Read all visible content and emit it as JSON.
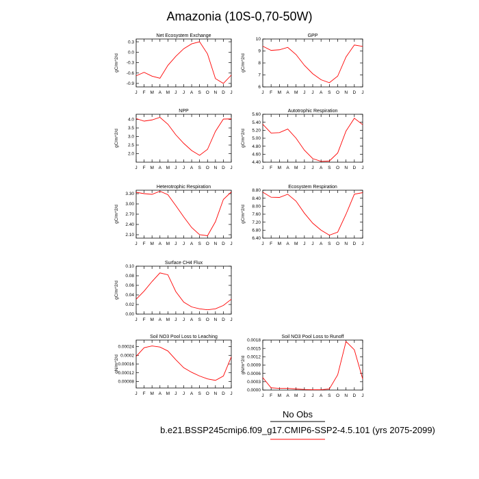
{
  "title": "Amazonia (10S-0,70-50W)",
  "legend": {
    "obs_label": "No Obs",
    "model_label": "b.e21.BSSP245cmip6.f09_g17.CMIP6-SSP2-4.5.101 (yrs 2075-2099)",
    "obs_color": "#000000",
    "model_color": "#ff0000"
  },
  "chart_data": [
    {
      "type": "line",
      "title": "Net Ecosystem Exchange",
      "ylabel": "gC/m^2/d",
      "categories": [
        "J",
        "F",
        "M",
        "A",
        "M",
        "J",
        "J",
        "A",
        "S",
        "O",
        "N",
        "D",
        "J"
      ],
      "ylim": [
        -1.0,
        0.38
      ],
      "yticks": [
        -0.9,
        -0.6,
        -0.3,
        0.0,
        0.3
      ],
      "ytick_labels": [
        "-0.9",
        "-0.6",
        "-0.3",
        "0.0",
        "0.3"
      ],
      "series": [
        {
          "color": "#ff0000",
          "values": [
            -0.68,
            -0.58,
            -0.69,
            -0.75,
            -0.38,
            -0.12,
            0.1,
            0.24,
            0.3,
            -0.05,
            -0.76,
            -0.9,
            -0.66
          ]
        }
      ]
    },
    {
      "type": "line",
      "title": "GPP",
      "ylabel": "gC/m^2/d",
      "categories": [
        "J",
        "F",
        "M",
        "A",
        "M",
        "J",
        "J",
        "A",
        "S",
        "O",
        "N",
        "D",
        "J"
      ],
      "ylim": [
        6,
        10
      ],
      "yticks": [
        6,
        7,
        8,
        9,
        10
      ],
      "ytick_labels": [
        "6",
        "7",
        "8",
        "9",
        "10"
      ],
      "series": [
        {
          "color": "#ff0000",
          "values": [
            9.4,
            9.05,
            9.1,
            9.3,
            8.7,
            7.8,
            7.1,
            6.6,
            6.35,
            6.9,
            8.5,
            9.5,
            9.38
          ]
        }
      ]
    },
    {
      "type": "line",
      "title": "NPP",
      "ylabel": "gC/m^2/d",
      "categories": [
        "J",
        "F",
        "M",
        "A",
        "M",
        "J",
        "J",
        "A",
        "S",
        "O",
        "N",
        "D",
        "J"
      ],
      "ylim": [
        1.5,
        4.3
      ],
      "yticks": [
        2.0,
        2.5,
        3.0,
        3.5,
        4.0
      ],
      "ytick_labels": [
        "2.0",
        "2.5",
        "3.0",
        "3.5",
        "4.0"
      ],
      "series": [
        {
          "color": "#ff0000",
          "values": [
            4.05,
            3.9,
            3.97,
            4.12,
            3.72,
            3.1,
            2.6,
            2.18,
            1.9,
            2.25,
            3.3,
            4.02,
            4.03
          ]
        }
      ]
    },
    {
      "type": "line",
      "title": "Autotrophic Respiration",
      "ylabel": "gC/m^2/d",
      "categories": [
        "J",
        "F",
        "M",
        "A",
        "M",
        "J",
        "J",
        "A",
        "S",
        "O",
        "N",
        "D",
        "J"
      ],
      "ylim": [
        4.4,
        5.6
      ],
      "yticks": [
        4.4,
        4.6,
        4.8,
        5.0,
        5.2,
        5.4,
        5.6
      ],
      "ytick_labels": [
        "4.40",
        "4.60",
        "4.80",
        "5.00",
        "5.20",
        "5.40",
        "5.60"
      ],
      "series": [
        {
          "color": "#ff0000",
          "values": [
            5.35,
            5.13,
            5.14,
            5.23,
            5.0,
            4.7,
            4.49,
            4.42,
            4.43,
            4.63,
            5.18,
            5.5,
            5.34
          ]
        }
      ]
    },
    {
      "type": "line",
      "title": "Heterotrophic Respiration",
      "ylabel": "gC/m^2/d",
      "categories": [
        "J",
        "F",
        "M",
        "A",
        "M",
        "J",
        "J",
        "A",
        "S",
        "O",
        "N",
        "D",
        "J"
      ],
      "ylim": [
        2.0,
        3.4
      ],
      "yticks": [
        2.1,
        2.4,
        2.7,
        3.0,
        3.3
      ],
      "ytick_labels": [
        "2.10",
        "2.40",
        "2.70",
        "3.00",
        "3.30"
      ],
      "series": [
        {
          "color": "#ff0000",
          "values": [
            3.34,
            3.3,
            3.28,
            3.37,
            3.27,
            2.95,
            2.62,
            2.31,
            2.1,
            2.07,
            2.48,
            3.13,
            3.35
          ]
        }
      ]
    },
    {
      "type": "line",
      "title": "Ecosystem Respiration",
      "ylabel": "gC/m^2/d",
      "categories": [
        "J",
        "F",
        "M",
        "A",
        "M",
        "J",
        "J",
        "A",
        "S",
        "O",
        "N",
        "D",
        "J"
      ],
      "ylim": [
        6.4,
        8.8
      ],
      "yticks": [
        6.4,
        6.8,
        7.2,
        7.6,
        8.0,
        8.4,
        8.8
      ],
      "ytick_labels": [
        "6.40",
        "6.80",
        "7.20",
        "7.60",
        "8.00",
        "8.40",
        "8.80"
      ],
      "series": [
        {
          "color": "#ff0000",
          "values": [
            8.7,
            8.45,
            8.44,
            8.6,
            8.25,
            7.65,
            7.15,
            6.8,
            6.55,
            6.7,
            7.6,
            8.6,
            8.68
          ]
        }
      ]
    },
    {
      "type": "line",
      "title": "Surface CH4 Flux",
      "ylabel": "gC/m^2/d",
      "categories": [
        "J",
        "F",
        "M",
        "A",
        "M",
        "J",
        "J",
        "A",
        "S",
        "O",
        "N",
        "D",
        "J"
      ],
      "ylim": [
        0.0,
        0.1
      ],
      "yticks": [
        0.0,
        0.02,
        0.04,
        0.06,
        0.08,
        0.1
      ],
      "ytick_labels": [
        "0.00",
        "0.02",
        "0.04",
        "0.06",
        "0.08",
        "0.10"
      ],
      "series": [
        {
          "color": "#ff0000",
          "values": [
            0.031,
            0.048,
            0.068,
            0.086,
            0.082,
            0.047,
            0.025,
            0.015,
            0.011,
            0.009,
            0.011,
            0.018,
            0.031
          ]
        }
      ]
    },
    {
      "type": "line",
      "title": "Soil NO3 Pool Loss to Leaching",
      "ylabel": "gN/m^2/d",
      "categories": [
        "J",
        "F",
        "M",
        "A",
        "M",
        "J",
        "J",
        "A",
        "S",
        "O",
        "N",
        "D",
        "J"
      ],
      "ylim": [
        5e-05,
        0.00027
      ],
      "yticks": [
        8e-05,
        0.00012,
        0.00016,
        0.0002,
        0.00024
      ],
      "ytick_labels": [
        "0.00008",
        "0.00012",
        "0.00016",
        "0.0002",
        "0.00024"
      ],
      "series": [
        {
          "color": "#ff0000",
          "values": [
            0.000195,
            0.000235,
            0.000243,
            0.000238,
            0.00022,
            0.00018,
            0.000143,
            0.000122,
            0.000105,
            9.2e-05,
            8.5e-05,
            0.000105,
            0.000193
          ]
        }
      ]
    },
    {
      "type": "line",
      "title": "Soil NO3 Pool Loss to Runoff",
      "ylabel": "gN/m^2/d",
      "categories": [
        "J",
        "F",
        "M",
        "A",
        "M",
        "J",
        "J",
        "A",
        "S",
        "O",
        "N",
        "D",
        "J"
      ],
      "ylim": [
        0.0,
        0.0018
      ],
      "yticks": [
        0.0,
        0.0003,
        0.0006,
        0.0009,
        0.0012,
        0.0015,
        0.0018
      ],
      "ytick_labels": [
        "0.0000",
        "0.0003",
        "0.0006",
        "0.0009",
        "0.0012",
        "0.0015",
        "0.0018"
      ],
      "series": [
        {
          "color": "#ff0000",
          "values": [
            0.00045,
            8e-05,
            6e-05,
            6e-05,
            4e-05,
            2e-05,
            1e-05,
            1e-05,
            4e-05,
            0.00055,
            0.00175,
            0.00145,
            0.0004
          ]
        }
      ]
    }
  ]
}
